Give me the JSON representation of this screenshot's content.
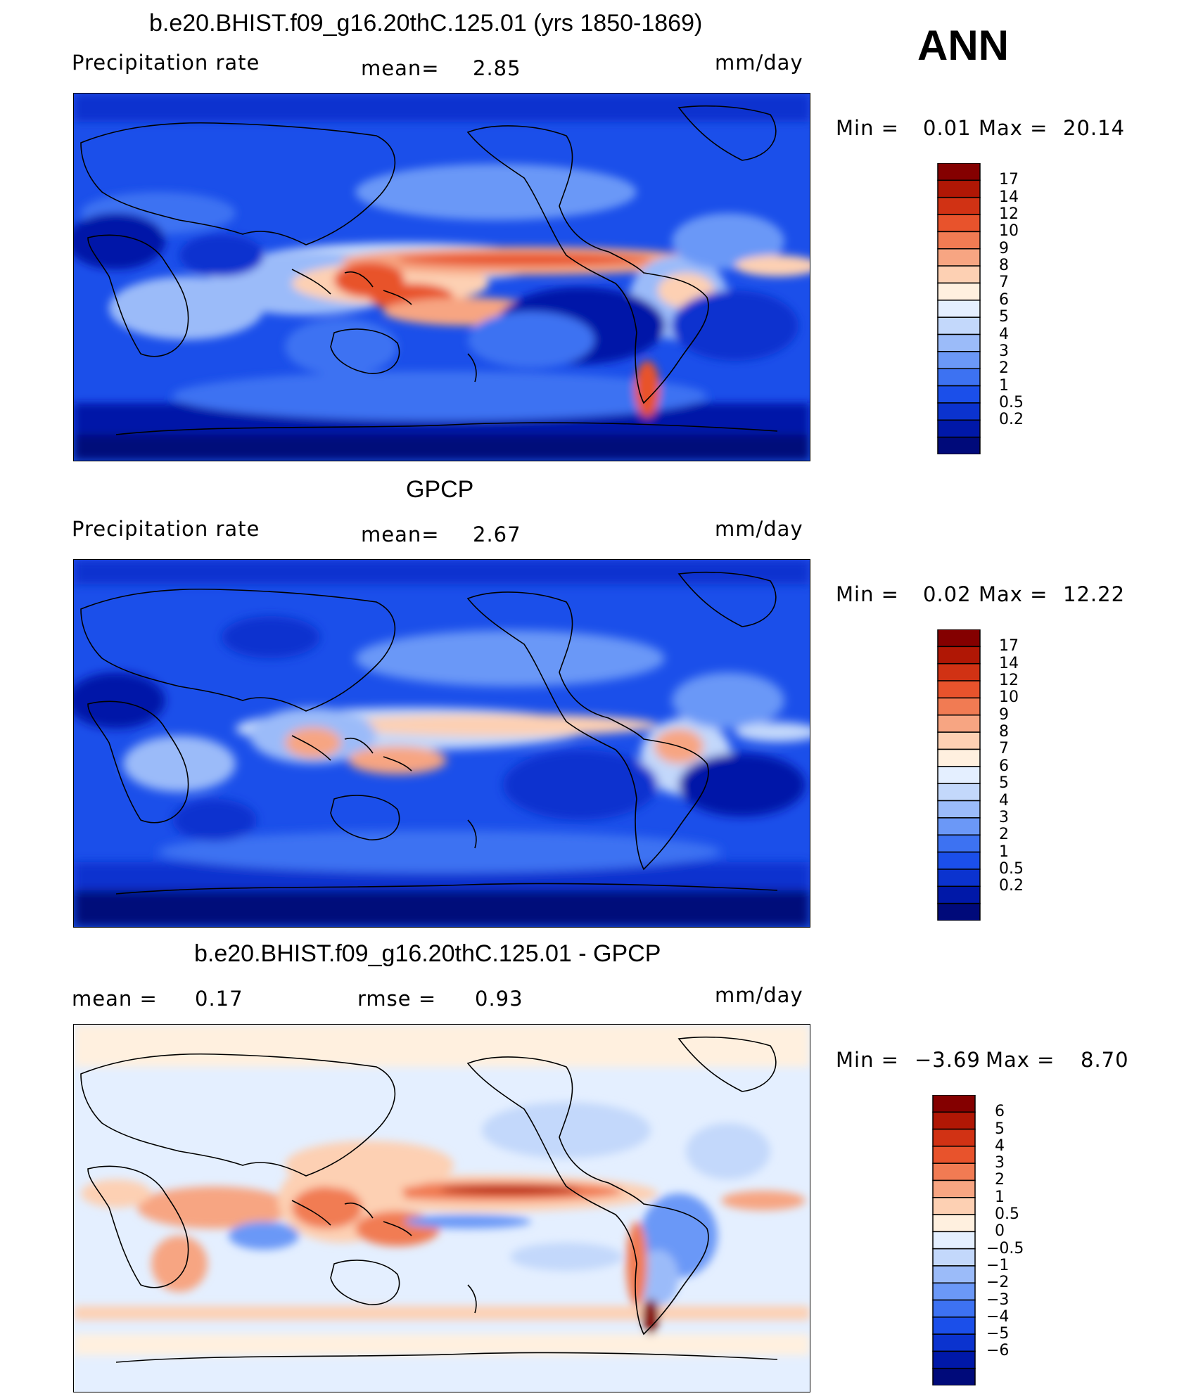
{
  "season": "ANN",
  "palette": {
    "precip": [
      "#000a7a",
      "#0018a8",
      "#0b33cf",
      "#1b4fea",
      "#3d72f2",
      "#6b98f7",
      "#9bbbf9",
      "#c3d8fb",
      "#e4efff",
      "#fff0df",
      "#fdd0b3",
      "#f7a582",
      "#f17b53",
      "#e8532c",
      "#d13214",
      "#b01705",
      "#840000"
    ],
    "diff": [
      "#000a7a",
      "#0018a8",
      "#0b33cf",
      "#1b4fea",
      "#3d72f2",
      "#6b98f7",
      "#9bbbf9",
      "#c3d8fb",
      "#e4efff",
      "#fff0df",
      "#fdd0b3",
      "#f7a582",
      "#f17b53",
      "#e8532c",
      "#d13214",
      "#b01705",
      "#840000"
    ],
    "coast": "#000000"
  },
  "panels": [
    {
      "title": "b.e20.BHIST.f09_g16.20thC.125.01 (yrs 1850-1869)",
      "left_label": "Precipitation  rate",
      "mean_label": "mean=",
      "mean_value": "2.85",
      "units": "mm/day",
      "min_label": "Min  =",
      "min_value": "0.01",
      "max_label": "Max  =",
      "max_value": "20.14",
      "colorbar_labels": [
        "17",
        "14",
        "12",
        "10",
        "9",
        "8",
        "7",
        "6",
        "5",
        "4",
        "3",
        "2",
        "1",
        "0.5",
        "0.2"
      ],
      "field": "model"
    },
    {
      "title": "GPCP",
      "left_label": "Precipitation  rate",
      "mean_label": "mean=",
      "mean_value": "2.67",
      "units": "mm/day",
      "min_label": "Min  =",
      "min_value": "0.02",
      "max_label": "Max  =",
      "max_value": "12.22",
      "colorbar_labels": [
        "17",
        "14",
        "12",
        "10",
        "9",
        "8",
        "7",
        "6",
        "5",
        "4",
        "3",
        "2",
        "1",
        "0.5",
        "0.2"
      ],
      "field": "obs"
    },
    {
      "title": "b.e20.BHIST.f09_g16.20thC.125.01 - GPCP",
      "mean_label": "mean  =",
      "mean_value": "0.17",
      "rmse_label": "rmse  =",
      "rmse_value": "0.93",
      "units": "mm/day",
      "min_label": "Min  =",
      "min_value": "−3.69",
      "max_label": "Max  =",
      "max_value": "8.70",
      "colorbar_labels": [
        "6",
        "5",
        "4",
        "3",
        "2",
        "1",
        "0.5",
        "0",
        "−0.5",
        "−1",
        "−2",
        "−3",
        "−4",
        "−5",
        "−6"
      ],
      "field": "diff"
    }
  ]
}
